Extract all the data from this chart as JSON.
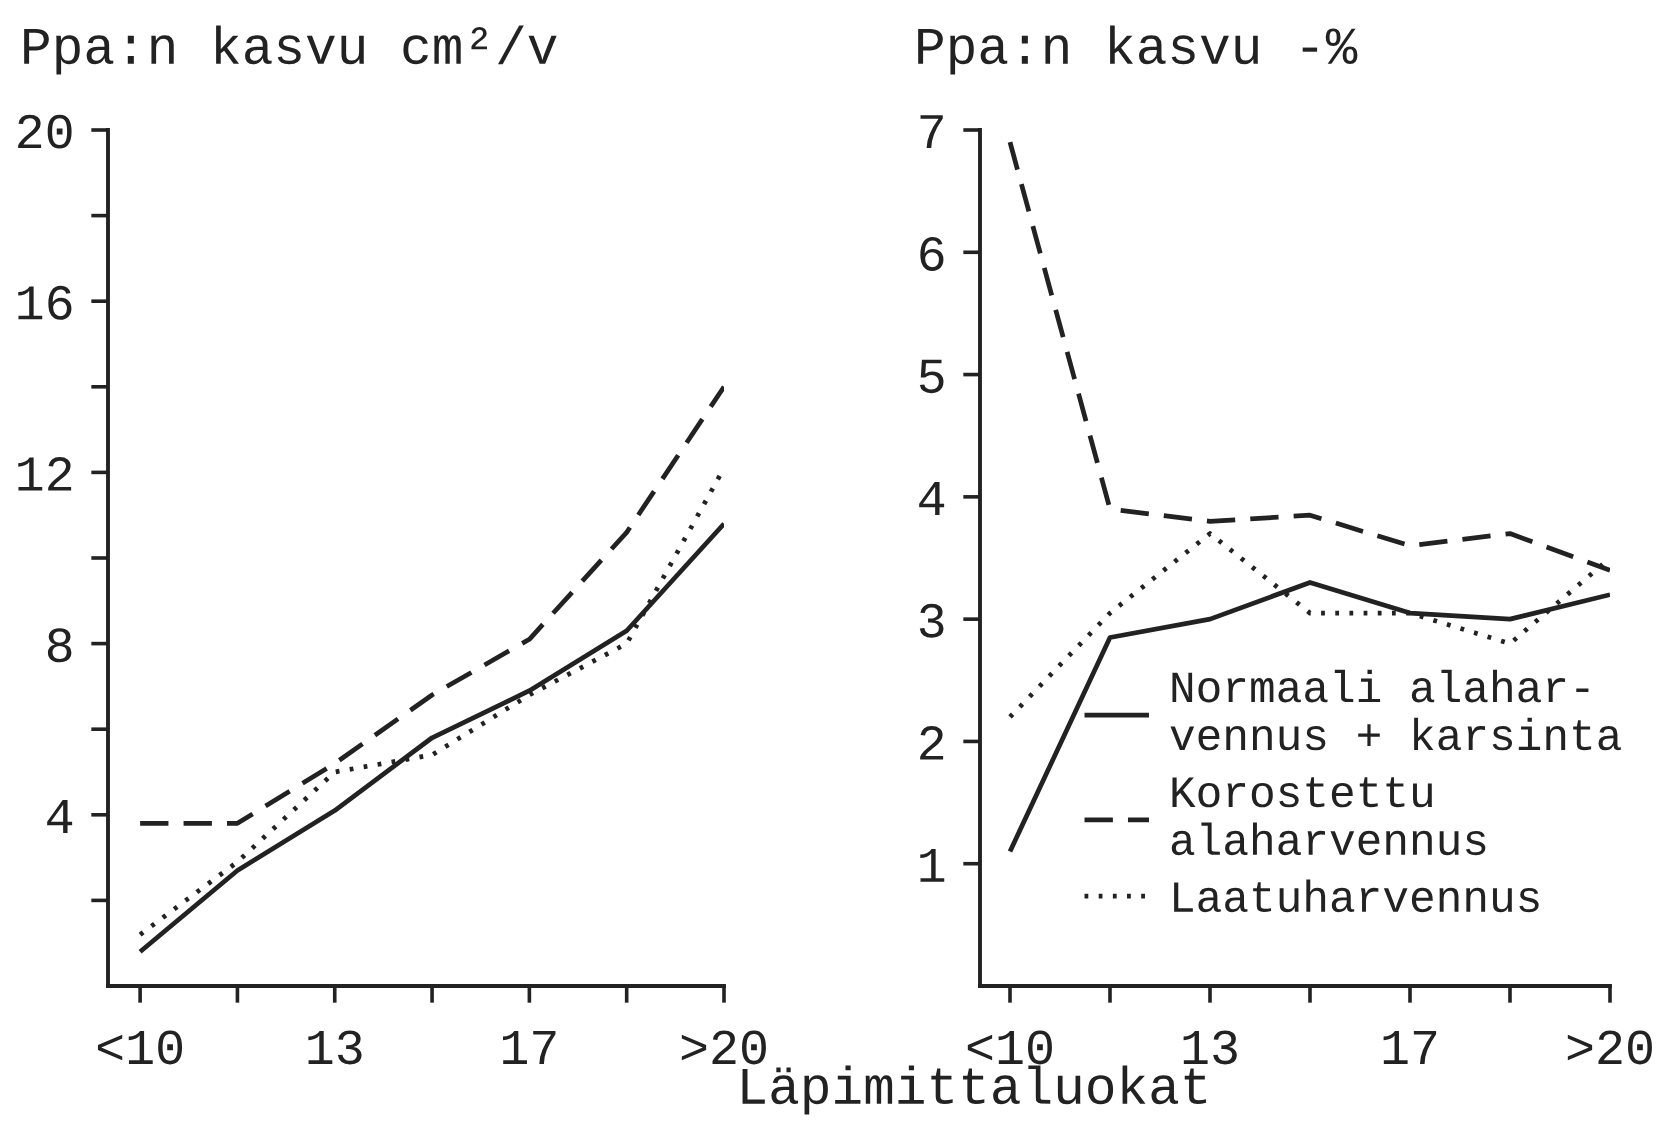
{
  "chart_data": [
    {
      "type": "line",
      "ylabel": "Ppa:n kasvu cm²/v",
      "categories": [
        "<10",
        null,
        "13",
        null,
        "17",
        null,
        ">20"
      ],
      "ylim": [
        0,
        20
      ],
      "yticks": [
        {
          "value": 2,
          "label": null
        },
        4,
        {
          "value": 6,
          "label": null
        },
        8,
        {
          "value": 10,
          "label": null
        },
        12,
        {
          "value": 14,
          "label": null
        },
        16,
        {
          "value": 18,
          "label": null
        },
        20
      ],
      "series": [
        {
          "color": "#222222",
          "line_style": "solid",
          "values": [
            0.8,
            2.7,
            4.1,
            5.8,
            6.9,
            8.3,
            10.8
          ]
        },
        {
          "color": "#222222",
          "line_style": "dashed",
          "values": [
            3.8,
            3.8,
            5.2,
            6.8,
            8.1,
            10.6,
            14.0
          ]
        },
        {
          "color": "#222222",
          "line_style": "dotted",
          "values": [
            1.2,
            2.9,
            5.0,
            5.4,
            6.8,
            8.0,
            12.1
          ]
        }
      ]
    },
    {
      "type": "line",
      "ylabel": "Ppa:n kasvu -%",
      "xlabel": "Läpimittaluokat",
      "categories": [
        "<10",
        null,
        "13",
        null,
        "17",
        null,
        ">20"
      ],
      "ylim": [
        0,
        7
      ],
      "yticks": [
        1,
        2,
        3,
        4,
        5,
        6,
        7
      ],
      "legend": "bottom right",
      "series": [
        {
          "name": "Normaali alahar-\nvennus + karsinta",
          "color": "#222222",
          "line_style": "solid",
          "values": [
            1.1,
            2.85,
            3.0,
            3.3,
            3.05,
            3.0,
            3.2
          ]
        },
        {
          "name": "Korostettu\nalaharvennus",
          "color": "#222222",
          "line_style": "dashed",
          "values": [
            6.9,
            3.9,
            3.8,
            3.85,
            3.6,
            3.7,
            3.4
          ]
        },
        {
          "name": "Laatuharvennus",
          "color": "#222222",
          "line_style": "dotted",
          "values": [
            2.2,
            3.05,
            3.7,
            3.05,
            3.05,
            2.8,
            3.5
          ]
        }
      ]
    }
  ]
}
